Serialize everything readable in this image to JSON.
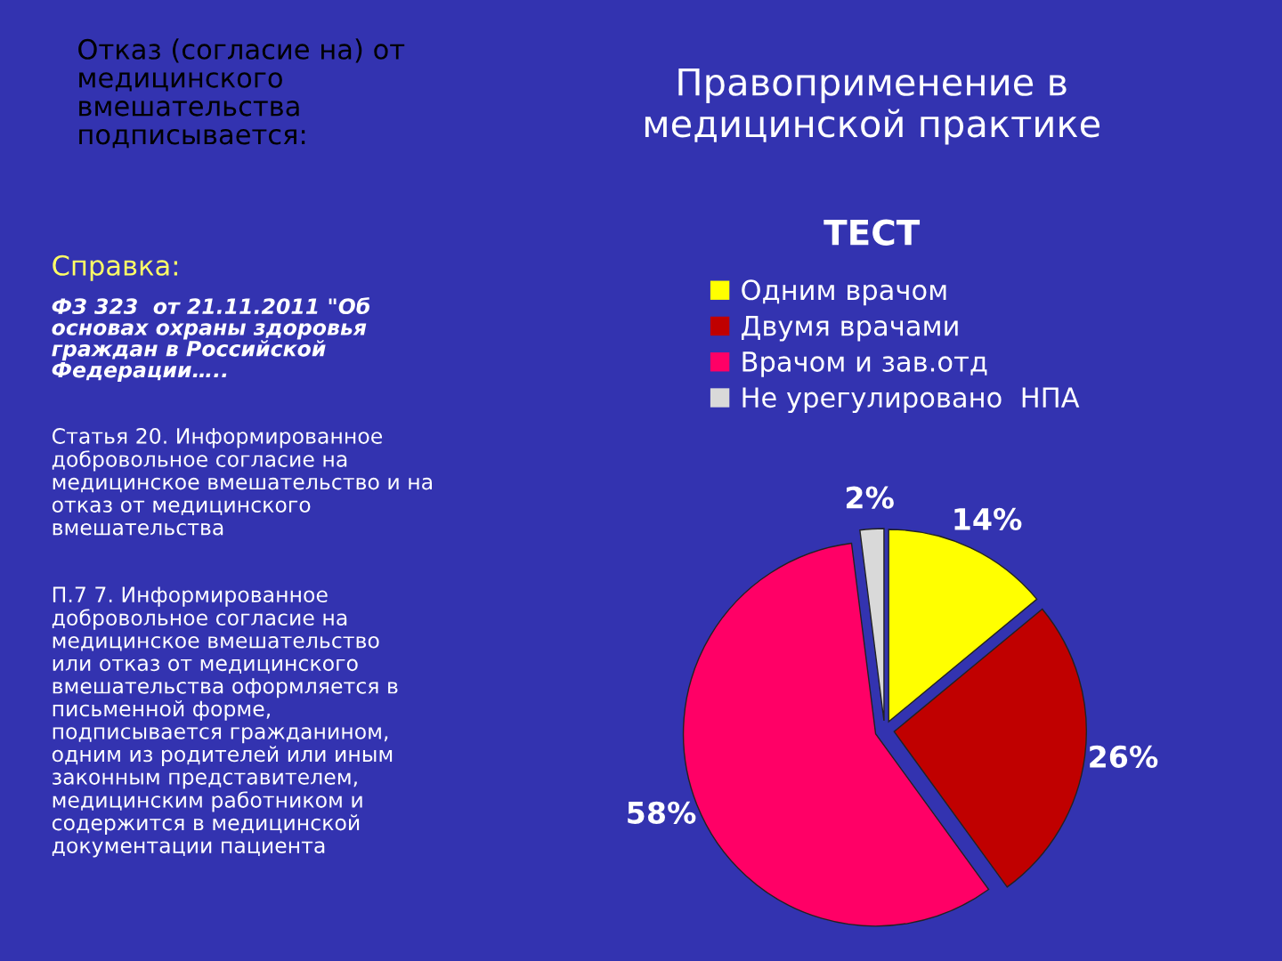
{
  "chart_data": {
    "type": "pie",
    "title": "ТЕСТ",
    "categories": [
      "Одним врачом",
      "Двумя врачами",
      "Врачом и зав.отд",
      "Не урегулировано  НПА"
    ],
    "values": [
      14,
      26,
      58,
      2
    ],
    "colors": [
      "#ffff00",
      "#c00000",
      "#ff0066",
      "#d9d9d9"
    ],
    "value_labels": [
      "14%",
      "26%",
      "58%",
      "2%"
    ],
    "legend": "top",
    "annotations": [
      "Отказ (согласие на) от\nмедицинского\nвмешательства\nподписывается:",
      "Правоприменение в\nмедицинской практике",
      "Справка:",
      "ФЗ 323  от 21.11.2011 \"Об\nосновах охраны здоровья\nграждан в Российской\nФедерации…..",
      "Статья 20. Информированное\nдобровольное согласие на\nмедицинское вмешательство и на\nотказ от медицинского\nвмешательства",
      "П.7 7. Информированное\nдобровольное согласие на\nмедицинское вмешательство\nили отказ от медицинского\nвмешательства оформляется в\nписьменной форме,\nподписывается гражданином,\nодним из родителей или иным\nзаконным представителем,\nмедицинским работником и\nсодержится в медицинской\nдокументации пациента"
    ]
  }
}
